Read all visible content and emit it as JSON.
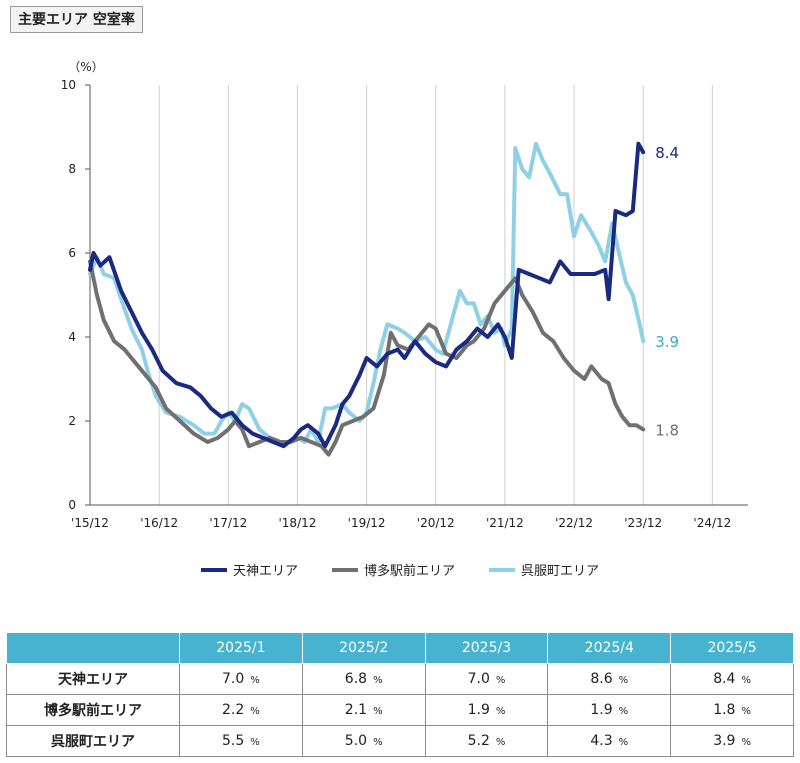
{
  "title": "主要エリア 空室率",
  "chart_data": {
    "type": "line",
    "y_unit_label": "（%）",
    "ylim": [
      0,
      10
    ],
    "y_ticks": [
      "0",
      "2",
      "4",
      "6",
      "8",
      "10"
    ],
    "x_ticks": [
      "'15/12",
      "'16/12",
      "'17/12",
      "'18/12",
      "'19/12",
      "'20/12",
      "'21/12",
      "'22/12",
      "'23/12",
      "'24/12"
    ],
    "grid": "vertical",
    "legend_position": "bottom",
    "series": [
      {
        "name": "天神エリア",
        "color": "#1a2a80",
        "end_label": "8.4",
        "points": [
          [
            0,
            5.6
          ],
          [
            0.05,
            6.0
          ],
          [
            0.15,
            5.7
          ],
          [
            0.28,
            5.9
          ],
          [
            0.45,
            5.1
          ],
          [
            0.6,
            4.6
          ],
          [
            0.75,
            4.1
          ],
          [
            0.9,
            3.7
          ],
          [
            1.05,
            3.2
          ],
          [
            1.25,
            2.9
          ],
          [
            1.45,
            2.8
          ],
          [
            1.6,
            2.6
          ],
          [
            1.75,
            2.3
          ],
          [
            1.9,
            2.1
          ],
          [
            2.05,
            2.2
          ],
          [
            2.2,
            1.9
          ],
          [
            2.35,
            1.7
          ],
          [
            2.5,
            1.6
          ],
          [
            2.65,
            1.5
          ],
          [
            2.8,
            1.4
          ],
          [
            2.95,
            1.6
          ],
          [
            3.05,
            1.8
          ],
          [
            3.15,
            1.9
          ],
          [
            3.3,
            1.7
          ],
          [
            3.4,
            1.4
          ],
          [
            3.55,
            1.9
          ],
          [
            3.65,
            2.4
          ],
          [
            3.75,
            2.6
          ],
          [
            3.9,
            3.1
          ],
          [
            4.0,
            3.5
          ],
          [
            4.15,
            3.3
          ],
          [
            4.3,
            3.6
          ],
          [
            4.45,
            3.7
          ],
          [
            4.55,
            3.5
          ],
          [
            4.7,
            3.9
          ],
          [
            4.85,
            3.6
          ],
          [
            5.0,
            3.4
          ],
          [
            5.15,
            3.3
          ],
          [
            5.3,
            3.7
          ],
          [
            5.45,
            3.9
          ],
          [
            5.6,
            4.2
          ],
          [
            5.75,
            4.0
          ],
          [
            5.9,
            4.3
          ],
          [
            6.0,
            4.0
          ],
          [
            6.1,
            3.5
          ],
          [
            6.2,
            5.6
          ],
          [
            6.35,
            5.5
          ],
          [
            6.5,
            5.4
          ],
          [
            6.65,
            5.3
          ],
          [
            6.8,
            5.8
          ],
          [
            6.95,
            5.5
          ],
          [
            7.1,
            5.5
          ],
          [
            7.3,
            5.5
          ],
          [
            7.45,
            5.6
          ],
          [
            7.5,
            4.9
          ],
          [
            7.6,
            7.0
          ],
          [
            7.75,
            6.9
          ],
          [
            7.85,
            7.0
          ],
          [
            7.93,
            8.6
          ],
          [
            8.0,
            8.4
          ]
        ]
      },
      {
        "name": "博多駅前エリア",
        "color": "#707070",
        "end_label": "1.8",
        "points": [
          [
            0,
            5.8
          ],
          [
            0.1,
            5.0
          ],
          [
            0.2,
            4.4
          ],
          [
            0.35,
            3.9
          ],
          [
            0.5,
            3.7
          ],
          [
            0.65,
            3.4
          ],
          [
            0.8,
            3.1
          ],
          [
            0.95,
            2.8
          ],
          [
            1.1,
            2.3
          ],
          [
            1.3,
            2.0
          ],
          [
            1.5,
            1.7
          ],
          [
            1.7,
            1.5
          ],
          [
            1.85,
            1.6
          ],
          [
            2.0,
            1.8
          ],
          [
            2.1,
            2.0
          ],
          [
            2.2,
            1.8
          ],
          [
            2.3,
            1.4
          ],
          [
            2.45,
            1.5
          ],
          [
            2.6,
            1.6
          ],
          [
            2.75,
            1.5
          ],
          [
            2.9,
            1.5
          ],
          [
            3.05,
            1.6
          ],
          [
            3.2,
            1.5
          ],
          [
            3.35,
            1.4
          ],
          [
            3.45,
            1.2
          ],
          [
            3.55,
            1.5
          ],
          [
            3.65,
            1.9
          ],
          [
            3.8,
            2.0
          ],
          [
            3.95,
            2.1
          ],
          [
            4.1,
            2.3
          ],
          [
            4.25,
            3.1
          ],
          [
            4.35,
            4.1
          ],
          [
            4.45,
            3.8
          ],
          [
            4.6,
            3.7
          ],
          [
            4.75,
            4.0
          ],
          [
            4.9,
            4.3
          ],
          [
            5.0,
            4.2
          ],
          [
            5.15,
            3.6
          ],
          [
            5.3,
            3.5
          ],
          [
            5.45,
            3.8
          ],
          [
            5.55,
            3.9
          ],
          [
            5.7,
            4.2
          ],
          [
            5.85,
            4.8
          ],
          [
            6.0,
            5.1
          ],
          [
            6.15,
            5.4
          ],
          [
            6.25,
            5.0
          ],
          [
            6.4,
            4.6
          ],
          [
            6.55,
            4.1
          ],
          [
            6.7,
            3.9
          ],
          [
            6.85,
            3.5
          ],
          [
            7.0,
            3.2
          ],
          [
            7.15,
            3.0
          ],
          [
            7.25,
            3.3
          ],
          [
            7.4,
            3.0
          ],
          [
            7.5,
            2.9
          ],
          [
            7.6,
            2.4
          ],
          [
            7.7,
            2.1
          ],
          [
            7.8,
            1.9
          ],
          [
            7.9,
            1.9
          ],
          [
            8.0,
            1.8
          ]
        ]
      },
      {
        "name": "呉服町エリア",
        "color": "#8fd0e6",
        "end_label": "3.9",
        "points": [
          [
            0,
            5.5
          ],
          [
            0.1,
            5.9
          ],
          [
            0.2,
            5.5
          ],
          [
            0.35,
            5.4
          ],
          [
            0.45,
            4.9
          ],
          [
            0.6,
            4.2
          ],
          [
            0.75,
            3.7
          ],
          [
            0.85,
            3.1
          ],
          [
            0.95,
            2.6
          ],
          [
            1.1,
            2.2
          ],
          [
            1.3,
            2.1
          ],
          [
            1.5,
            1.9
          ],
          [
            1.65,
            1.7
          ],
          [
            1.8,
            1.7
          ],
          [
            1.9,
            2.0
          ],
          [
            2.0,
            2.2
          ],
          [
            2.1,
            2.0
          ],
          [
            2.2,
            2.4
          ],
          [
            2.3,
            2.3
          ],
          [
            2.45,
            1.8
          ],
          [
            2.6,
            1.6
          ],
          [
            2.75,
            1.5
          ],
          [
            2.9,
            1.5
          ],
          [
            3.0,
            1.6
          ],
          [
            3.1,
            1.5
          ],
          [
            3.2,
            1.8
          ],
          [
            3.3,
            1.5
          ],
          [
            3.4,
            2.3
          ],
          [
            3.5,
            2.3
          ],
          [
            3.65,
            2.4
          ],
          [
            3.75,
            2.2
          ],
          [
            3.9,
            2.0
          ],
          [
            4.0,
            2.2
          ],
          [
            4.1,
            2.9
          ],
          [
            4.2,
            3.7
          ],
          [
            4.3,
            4.3
          ],
          [
            4.45,
            4.2
          ],
          [
            4.55,
            4.1
          ],
          [
            4.7,
            3.9
          ],
          [
            4.85,
            4.0
          ],
          [
            5.0,
            3.7
          ],
          [
            5.1,
            3.6
          ],
          [
            5.25,
            4.5
          ],
          [
            5.35,
            5.1
          ],
          [
            5.45,
            4.8
          ],
          [
            5.55,
            4.8
          ],
          [
            5.65,
            4.3
          ],
          [
            5.75,
            4.5
          ],
          [
            5.85,
            4.1
          ],
          [
            5.95,
            4.2
          ],
          [
            6.0,
            3.8
          ],
          [
            6.05,
            4.0
          ],
          [
            6.1,
            4.2
          ],
          [
            6.15,
            8.5
          ],
          [
            6.25,
            8.0
          ],
          [
            6.35,
            7.8
          ],
          [
            6.45,
            8.6
          ],
          [
            6.55,
            8.2
          ],
          [
            6.65,
            7.9
          ],
          [
            6.8,
            7.4
          ],
          [
            6.9,
            7.4
          ],
          [
            7.0,
            6.4
          ],
          [
            7.1,
            6.9
          ],
          [
            7.25,
            6.5
          ],
          [
            7.35,
            6.2
          ],
          [
            7.45,
            5.8
          ],
          [
            7.55,
            6.7
          ],
          [
            7.65,
            6.0
          ],
          [
            7.75,
            5.3
          ],
          [
            7.85,
            5.0
          ],
          [
            7.95,
            4.3
          ],
          [
            8.0,
            3.9
          ]
        ]
      }
    ]
  },
  "table": {
    "columns": [
      "2025/1",
      "2025/2",
      "2025/3",
      "2025/4",
      "2025/5"
    ],
    "unit": "%",
    "rows": [
      {
        "label": "天神エリア",
        "values": [
          "7.0",
          "6.8",
          "7.0",
          "8.6",
          "8.4"
        ]
      },
      {
        "label": "博多駅前エリア",
        "values": [
          "2.2",
          "2.1",
          "1.9",
          "1.9",
          "1.8"
        ]
      },
      {
        "label": "呉服町エリア",
        "values": [
          "5.5",
          "5.0",
          "5.2",
          "4.3",
          "3.9"
        ]
      }
    ]
  }
}
